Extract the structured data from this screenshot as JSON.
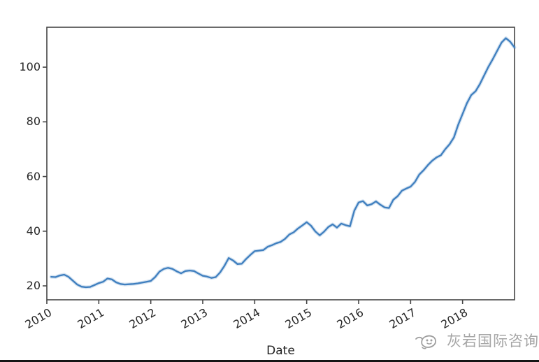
{
  "figure": {
    "background": "#ffffff",
    "bottom_divider_color": "#151515"
  },
  "watermark": {
    "text": "灰岩国际咨询",
    "color": "#a6a6a6",
    "icon": "whale-logo-icon"
  },
  "chart_data": {
    "type": "line",
    "title": "",
    "xlabel": "Date",
    "ylabel": "",
    "legend": "none",
    "grid": false,
    "frequency": "monthly",
    "x_start": "2010-01",
    "x_end": "2018-12",
    "xlim": [
      2010,
      2019
    ],
    "ylim": [
      14.9,
      114.6
    ],
    "xticks": [
      2010,
      2011,
      2012,
      2013,
      2014,
      2015,
      2016,
      2017,
      2018
    ],
    "xtick_labels": [
      "2010",
      "2011",
      "2012",
      "2013",
      "2014",
      "2015",
      "2016",
      "2017",
      "2018"
    ],
    "xtick_rotation_deg": 30,
    "yticks": [
      20,
      40,
      60,
      80,
      100
    ],
    "ytick_labels": [
      "20",
      "40",
      "60",
      "80",
      "100"
    ],
    "line_color": "#3f7fbf",
    "axis_color": "#454545",
    "tick_label_color": "#262626",
    "values": [
      23.3,
      23.2,
      23.8,
      24.1,
      23.3,
      21.9,
      20.5,
      19.7,
      19.5,
      19.6,
      20.3,
      21.0,
      21.5,
      22.7,
      22.4,
      21.3,
      20.7,
      20.5,
      20.6,
      20.7,
      20.9,
      21.2,
      21.5,
      21.8,
      23.2,
      25.2,
      26.2,
      26.6,
      26.2,
      25.3,
      24.6,
      25.4,
      25.6,
      25.4,
      24.5,
      23.7,
      23.4,
      22.9,
      23.2,
      24.9,
      27.3,
      30.2,
      29.3,
      28.0,
      28.1,
      29.8,
      31.3,
      32.7,
      32.9,
      33.1,
      34.3,
      34.9,
      35.6,
      36.1,
      37.2,
      38.8,
      39.6,
      41.0,
      42.1,
      43.3,
      42.0,
      39.9,
      38.5,
      39.8,
      41.5,
      42.5,
      41.3,
      42.8,
      42.2,
      41.8,
      47.5,
      50.5,
      51.0,
      49.4,
      49.9,
      50.9,
      49.7,
      48.7,
      48.5,
      51.5,
      52.8,
      54.8,
      55.6,
      56.3,
      58.0,
      60.7,
      62.3,
      64.2,
      65.8,
      67.0,
      67.8,
      70.0,
      71.8,
      74.3,
      79.0,
      82.9,
      86.8,
      89.8,
      91.2,
      93.8,
      97.0,
      100.2,
      103.0,
      106.0,
      109.0,
      110.6,
      109.3,
      107.2
    ]
  }
}
